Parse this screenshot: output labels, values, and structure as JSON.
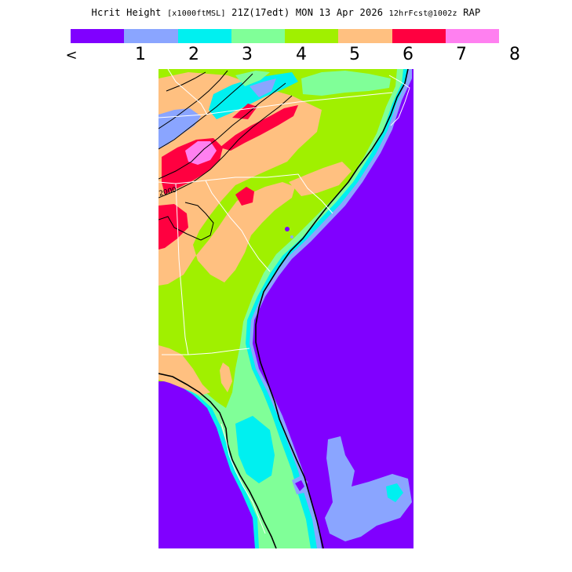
{
  "title": {
    "field": "Hcrit Height",
    "units": "[x1000ftMSL]",
    "time": "21Z(17edt)",
    "date": "MON 13 Apr 2026",
    "forecast": "12hrFcst@1002z",
    "model": "RAP"
  },
  "legend": {
    "colors": [
      "#8000ff",
      "#8aa5ff",
      "#00f0f0",
      "#80ff98",
      "#a0f000",
      "#ffc080",
      "#ff0040",
      "#ff80f0"
    ],
    "labels": [
      "<",
      "1",
      "2",
      "3",
      "4",
      "5",
      "6",
      "7",
      "8"
    ]
  },
  "contours": {
    "label": "2000"
  },
  "colors": {
    "ocean": "#8000ff",
    "border": "#ffffff",
    "contour": "#000000"
  }
}
